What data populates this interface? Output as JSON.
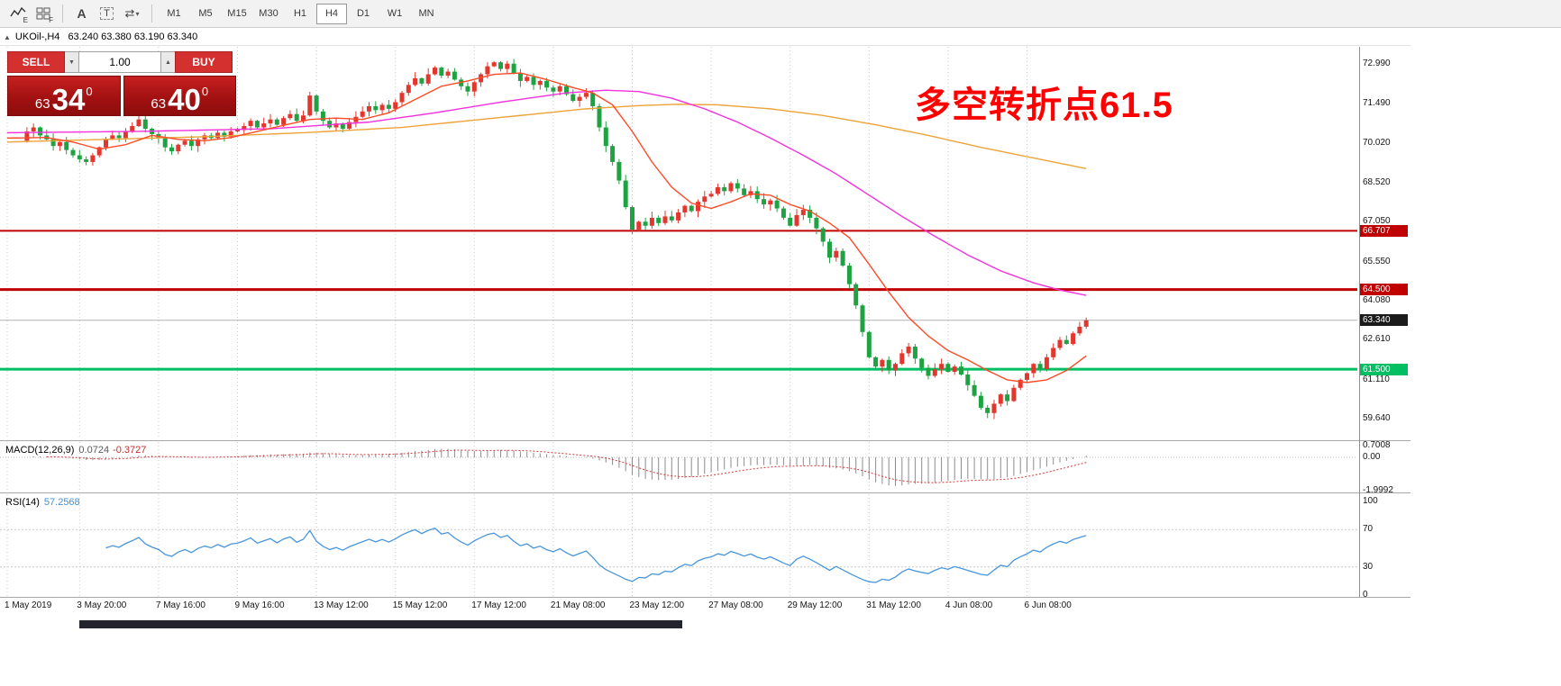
{
  "toolbar": {
    "icons": [
      {
        "name": "charts-bar-icon",
        "badge": "E"
      },
      {
        "name": "tile-windows-icon",
        "badge": "F"
      },
      {
        "name": "font-icon",
        "glyph": "A"
      },
      {
        "name": "text-label-icon",
        "glyph": "T"
      },
      {
        "name": "shift-chart-icon",
        "glyph": "⇄"
      }
    ],
    "timeframes": [
      "M1",
      "M5",
      "M15",
      "M30",
      "H1",
      "H4",
      "D1",
      "W1",
      "MN"
    ],
    "active_timeframe": "H4"
  },
  "header": {
    "collapse_icon": "▲",
    "symbol_period": "UKOil-,H4",
    "ohlc": "63.240 63.380 63.190 63.340"
  },
  "trade_panel": {
    "sell_label": "SELL",
    "buy_label": "BUY",
    "volume": "1.00",
    "volume_down_glyph": "▼",
    "volume_up_glyph": "▲",
    "sell_price_prefix": "63",
    "sell_price_big": "34",
    "sell_price_sup": "0",
    "buy_price_prefix": "63",
    "buy_price_big": "40",
    "buy_price_sup": "0"
  },
  "annotation": {
    "text": "多空转折点61.5",
    "color": "#ff0000"
  },
  "macd_panel": {
    "title": "MACD(12,26,9)",
    "value_main": "0.0724",
    "value_signal": "-0.3727"
  },
  "rsi_panel": {
    "title": "RSI(14)",
    "value": "57.2568"
  },
  "chart_data": {
    "type": "candlestick",
    "symbol": "UKOil-",
    "timeframe": "H4",
    "ohlc_display": {
      "open": "63.240",
      "high": "63.380",
      "low": "63.190",
      "close": "63.340"
    },
    "visible_from_index": 3,
    "up_color": "#e1372e",
    "down_color": "#1fa342",
    "current_price": 63.34,
    "closes": [
      70.15,
      70.35,
      70.1,
      70.45,
      70.6,
      70.3,
      70.15,
      69.9,
      70.05,
      69.75,
      69.55,
      69.4,
      69.3,
      69.55,
      69.85,
      70.15,
      70.3,
      70.2,
      70.45,
      70.65,
      70.9,
      70.55,
      70.35,
      70.2,
      69.85,
      69.7,
      69.95,
      70.1,
      69.9,
      70.15,
      70.3,
      70.2,
      70.4,
      70.25,
      70.45,
      70.5,
      70.65,
      70.85,
      70.6,
      70.75,
      70.9,
      70.7,
      70.95,
      71.1,
      70.85,
      71.05,
      71.8,
      71.2,
      70.85,
      70.6,
      70.75,
      70.55,
      70.8,
      71.0,
      71.2,
      71.4,
      71.25,
      71.45,
      71.3,
      71.55,
      71.9,
      72.2,
      72.45,
      72.25,
      72.6,
      72.85,
      72.55,
      72.7,
      72.4,
      72.15,
      71.95,
      72.3,
      72.6,
      72.9,
      73.05,
      72.8,
      73.0,
      72.65,
      72.35,
      72.5,
      72.2,
      72.35,
      72.1,
      71.95,
      72.15,
      71.85,
      71.6,
      71.75,
      71.9,
      71.4,
      70.6,
      69.9,
      69.3,
      68.6,
      67.6,
      66.75,
      67.05,
      66.9,
      67.2,
      67.0,
      67.25,
      67.1,
      67.4,
      67.65,
      67.45,
      67.8,
      68.0,
      68.1,
      68.35,
      68.2,
      68.5,
      68.3,
      68.05,
      68.2,
      67.9,
      67.7,
      67.85,
      67.55,
      67.2,
      66.9,
      67.3,
      67.5,
      67.2,
      66.8,
      66.3,
      65.7,
      65.95,
      65.4,
      64.7,
      63.9,
      62.9,
      61.95,
      61.6,
      61.85,
      61.45,
      61.7,
      62.1,
      62.35,
      61.9,
      61.55,
      61.25,
      61.5,
      61.7,
      61.4,
      61.6,
      61.3,
      60.9,
      60.5,
      60.05,
      59.85,
      60.2,
      60.55,
      60.3,
      60.8,
      61.1,
      61.35,
      61.7,
      61.5,
      61.95,
      62.3,
      62.6,
      62.45,
      62.85,
      63.1,
      63.34
    ],
    "levels": [
      {
        "price": 66.707,
        "color": "#c00000",
        "width": 2
      },
      {
        "price": 64.5,
        "color": "#c00000",
        "width": 3
      },
      {
        "price": 61.5,
        "color": "#00bf63",
        "width": 3
      }
    ],
    "ma_lines": [
      {
        "name": "ma-slow",
        "color": "#eda338",
        "anchors": [
          [
            0,
            70.05
          ],
          [
            15,
            70.15
          ],
          [
            30,
            70.25
          ],
          [
            45,
            70.4
          ],
          [
            60,
            70.6
          ],
          [
            70,
            70.85
          ],
          [
            80,
            71.1
          ],
          [
            88,
            71.3
          ],
          [
            96,
            71.42
          ],
          [
            102,
            71.47
          ],
          [
            108,
            71.45
          ],
          [
            116,
            71.3
          ],
          [
            124,
            71.05
          ],
          [
            132,
            70.7
          ],
          [
            140,
            70.3
          ],
          [
            148,
            69.85
          ],
          [
            156,
            69.45
          ],
          [
            164,
            69.05
          ]
        ]
      },
      {
        "name": "ma-mid",
        "color": "#f431dd",
        "anchors": [
          [
            0,
            70.4
          ],
          [
            20,
            70.45
          ],
          [
            40,
            70.55
          ],
          [
            55,
            70.8
          ],
          [
            65,
            71.15
          ],
          [
            75,
            71.55
          ],
          [
            85,
            71.9
          ],
          [
            91,
            72.0
          ],
          [
            96,
            71.95
          ],
          [
            101,
            71.7
          ],
          [
            106,
            71.3
          ],
          [
            111,
            70.8
          ],
          [
            116,
            70.2
          ],
          [
            121,
            69.55
          ],
          [
            126,
            68.85
          ],
          [
            131,
            68.05
          ],
          [
            136,
            67.25
          ],
          [
            141,
            66.5
          ],
          [
            146,
            65.8
          ],
          [
            151,
            65.2
          ],
          [
            156,
            64.75
          ],
          [
            160,
            64.48
          ],
          [
            164,
            64.28
          ]
        ]
      },
      {
        "name": "ma-fast",
        "color": "#ff4a26",
        "anchors": [
          [
            0,
            70.2
          ],
          [
            6,
            70.22
          ],
          [
            10,
            70.05
          ],
          [
            14,
            69.78
          ],
          [
            18,
            69.95
          ],
          [
            22,
            70.3
          ],
          [
            26,
            70.15
          ],
          [
            30,
            70.1
          ],
          [
            34,
            70.22
          ],
          [
            38,
            70.45
          ],
          [
            42,
            70.68
          ],
          [
            46,
            70.9
          ],
          [
            50,
            70.95
          ],
          [
            54,
            70.9
          ],
          [
            58,
            71.15
          ],
          [
            62,
            71.65
          ],
          [
            66,
            72.15
          ],
          [
            70,
            72.35
          ],
          [
            74,
            72.6
          ],
          [
            78,
            72.65
          ],
          [
            82,
            72.4
          ],
          [
            86,
            72.1
          ],
          [
            89,
            71.9
          ],
          [
            92,
            71.45
          ],
          [
            95,
            70.45
          ],
          [
            98,
            69.3
          ],
          [
            101,
            68.35
          ],
          [
            104,
            67.75
          ],
          [
            107,
            67.55
          ],
          [
            110,
            67.8
          ],
          [
            113,
            68.1
          ],
          [
            116,
            68.05
          ],
          [
            119,
            67.7
          ],
          [
            122,
            67.45
          ],
          [
            125,
            67.0
          ],
          [
            128,
            66.45
          ],
          [
            131,
            65.45
          ],
          [
            134,
            64.4
          ],
          [
            137,
            63.45
          ],
          [
            140,
            62.75
          ],
          [
            143,
            62.2
          ],
          [
            146,
            61.85
          ],
          [
            149,
            61.45
          ],
          [
            152,
            61.1
          ],
          [
            155,
            61.0
          ],
          [
            158,
            61.1
          ],
          [
            161,
            61.45
          ],
          [
            164,
            62.0
          ]
        ]
      }
    ],
    "macd": {
      "fast": 12,
      "slow": 26,
      "signal": 9,
      "histogram_color": "#8c8c8c",
      "signal_color": "#d23a3a",
      "axis": [
        "0.7008",
        "0.00",
        "-1.9992"
      ]
    },
    "rsi": {
      "period": 14,
      "color": "#4896dc",
      "axis": [
        "100",
        "70",
        "30",
        "0"
      ],
      "guides": [
        70,
        30
      ]
    },
    "price_axis_ticks": [
      "72.990",
      "71.490",
      "70.020",
      "68.520",
      "67.050",
      "65.550",
      "64.080",
      "62.610",
      "61.110",
      "59.640"
    ],
    "price_tags": [
      {
        "label": "66.707",
        "bg": "#c00000"
      },
      {
        "label": "64.500",
        "bg": "#c00000"
      },
      {
        "label": "63.340",
        "bg": "#1b1b1b"
      },
      {
        "label": "61.500",
        "bg": "#00bf63"
      }
    ],
    "time_ticks": [
      {
        "label": "1 May 2019",
        "i": 0
      },
      {
        "label": "3 May 20:00",
        "i": 11
      },
      {
        "label": "7 May 16:00",
        "i": 23
      },
      {
        "label": "9 May 16:00",
        "i": 35
      },
      {
        "label": "13 May 12:00",
        "i": 47
      },
      {
        "label": "15 May 12:00",
        "i": 59
      },
      {
        "label": "17 May 12:00",
        "i": 71
      },
      {
        "label": "21 May 08:00",
        "i": 83
      },
      {
        "label": "23 May 12:00",
        "i": 95
      },
      {
        "label": "27 May 08:00",
        "i": 107
      },
      {
        "label": "29 May 12:00",
        "i": 119
      },
      {
        "label": "31 May 12:00",
        "i": 131
      },
      {
        "label": "4 Jun 08:00",
        "i": 143
      },
      {
        "label": "6 Jun 08:00",
        "i": 155
      }
    ]
  }
}
